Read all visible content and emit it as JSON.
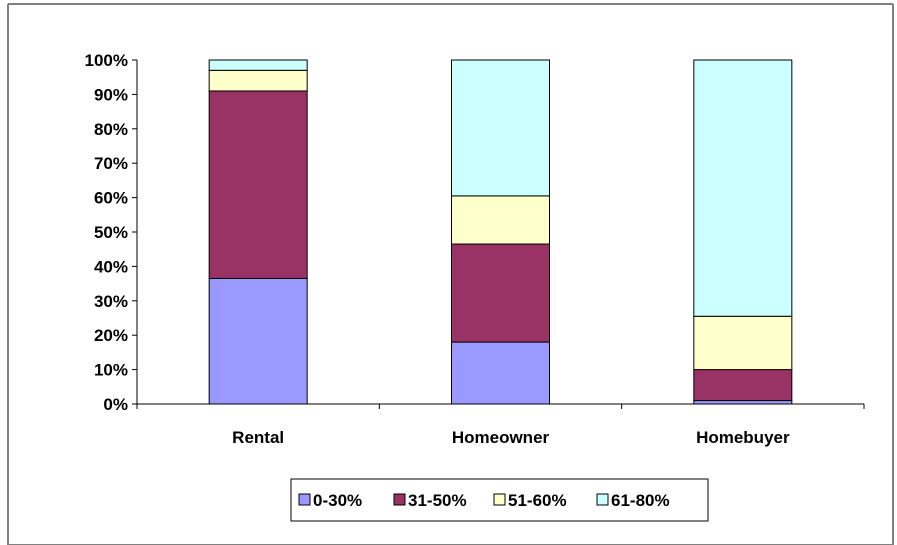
{
  "chart_data": {
    "type": "bar",
    "stacked": true,
    "percent_stacked": true,
    "categories": [
      "Rental",
      "Homeowner",
      "Homebuyer"
    ],
    "series": [
      {
        "name": "0-30%",
        "color": "#9999ff",
        "values": [
          36.5,
          18,
          1
        ]
      },
      {
        "name": "31-50%",
        "color": "#993366",
        "values": [
          54.5,
          28.5,
          9
        ]
      },
      {
        "name": "51-60%",
        "color": "#ffffcc",
        "values": [
          6,
          14,
          15.5
        ]
      },
      {
        "name": "61-80%",
        "color": "#ccffff",
        "values": [
          3,
          39.5,
          74.5
        ]
      }
    ],
    "yticks": [
      "0%",
      "10%",
      "20%",
      "30%",
      "40%",
      "50%",
      "60%",
      "70%",
      "80%",
      "90%",
      "100%"
    ],
    "ylim": [
      0,
      100
    ],
    "grid": false,
    "legend_position": "bottom",
    "title": "",
    "xlabel": "",
    "ylabel": ""
  }
}
